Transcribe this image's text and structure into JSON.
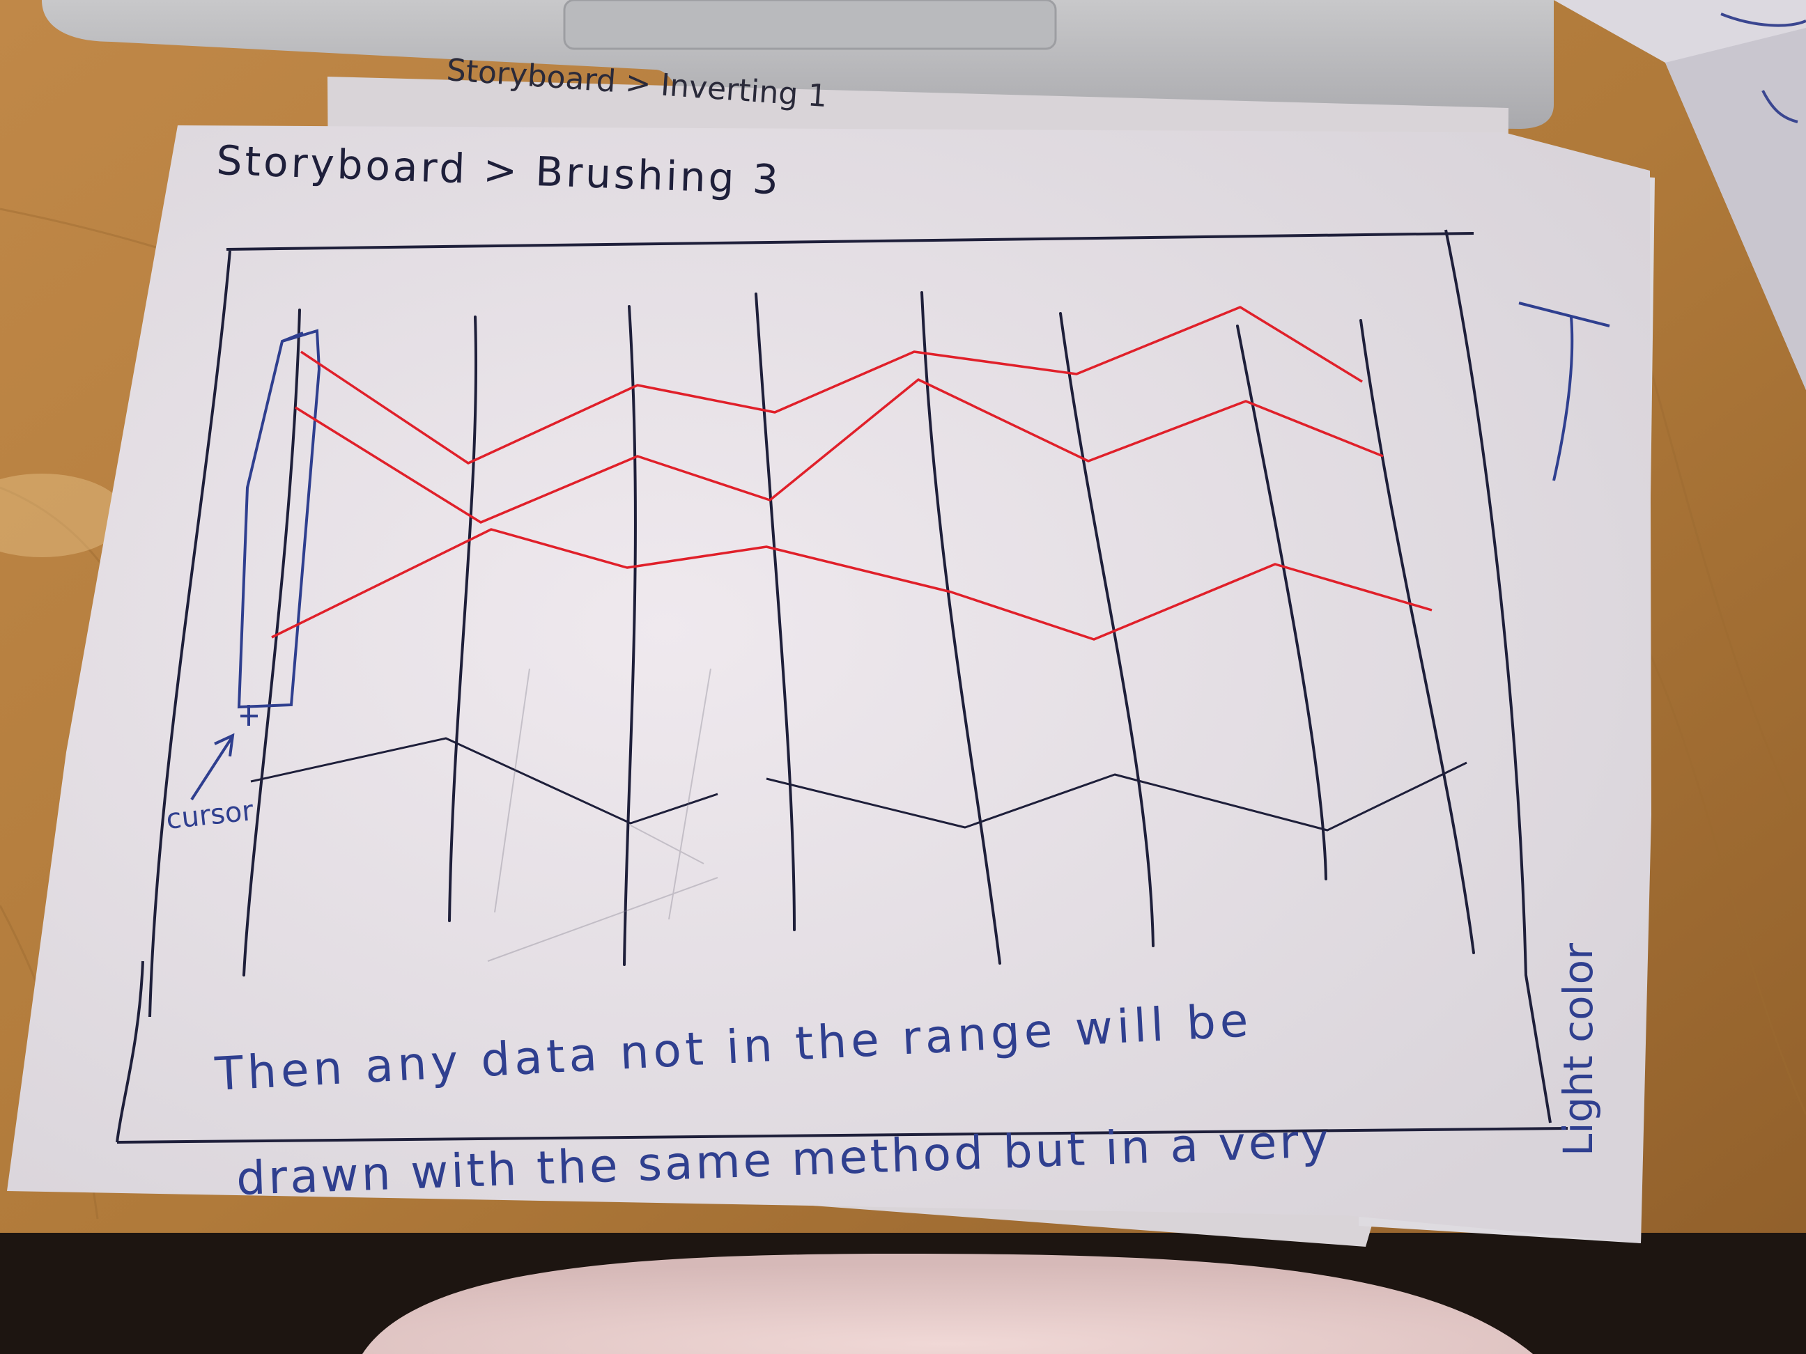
{
  "header": {
    "title": "Storyboard > Brushing 3",
    "back_page_title": "Storyboard > Inverting 1"
  },
  "sketch": {
    "cursor_label": "cursor",
    "side_note": "Light color",
    "caption_line1": "Then any data not in the range will be",
    "caption_line2": "drawn with the same method but in a very",
    "axis_count": 8,
    "highlighted_line_count": 3,
    "faded_line_count": 1
  },
  "colors": {
    "ink": "#1e1f3a",
    "pen_blue": "#2f3f8f",
    "highlight": "#e0202a",
    "paper": "#e6e2e6",
    "table": "#b8803f"
  }
}
